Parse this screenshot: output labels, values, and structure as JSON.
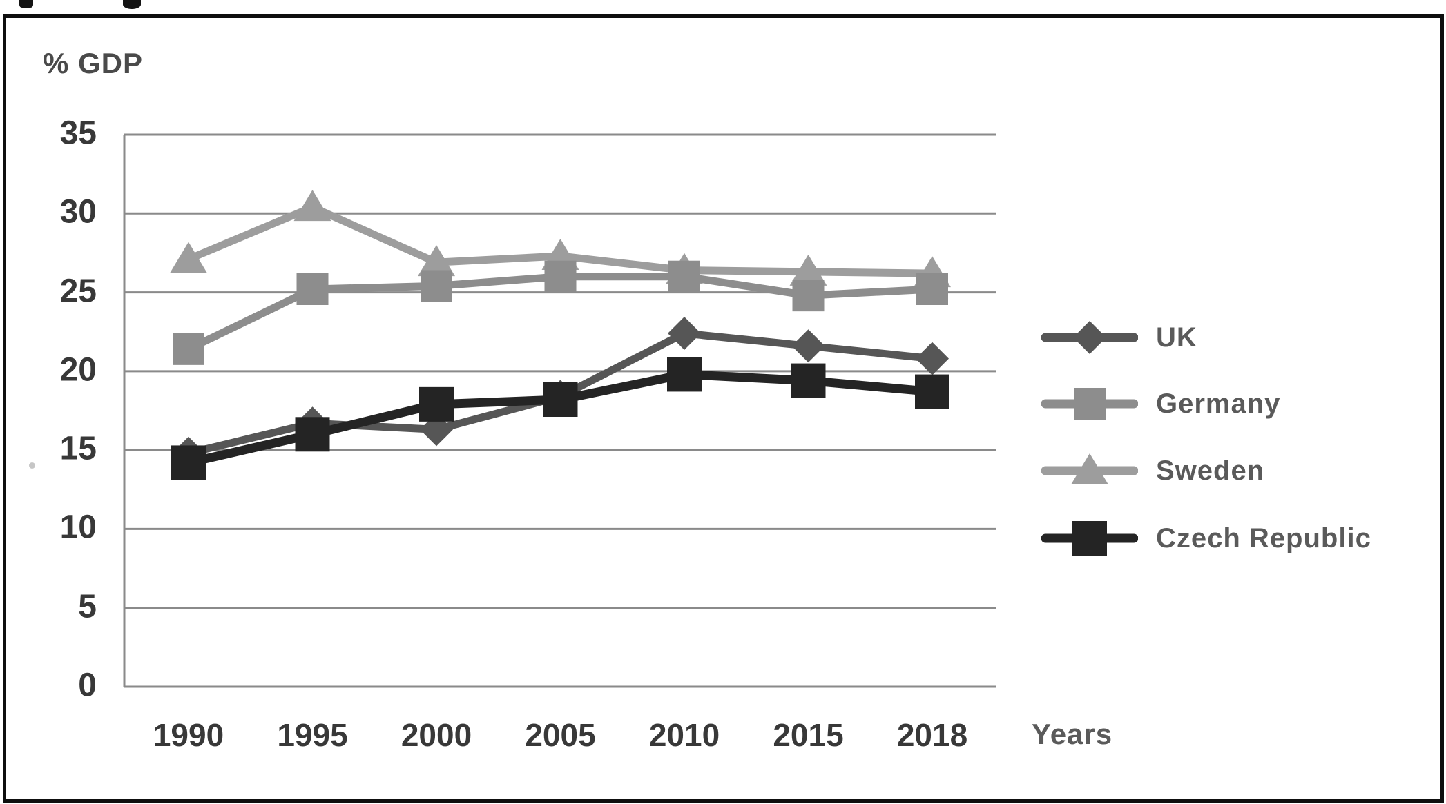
{
  "labels": {
    "y_axis_title": "% GDP",
    "x_axis_title": "Years"
  },
  "chart_data": {
    "type": "line",
    "title": "",
    "categories": [
      "1990",
      "1995",
      "2000",
      "2005",
      "2010",
      "2015",
      "2018"
    ],
    "xlabel": "Years",
    "ylabel": "% GDP",
    "y_axis": {
      "min": 0,
      "max": 35,
      "tick_step": 5,
      "ticks": [
        35,
        30,
        25,
        20,
        15,
        10,
        5,
        0
      ]
    },
    "grid": true,
    "legend_position": "right",
    "series": [
      {
        "name": "UK",
        "marker": "diamond",
        "color": "#565656",
        "values": [
          14.8,
          16.7,
          16.3,
          18.4,
          22.4,
          21.6,
          20.8
        ]
      },
      {
        "name": "Germany",
        "marker": "square",
        "color": "#8d8d8d",
        "values": [
          21.4,
          25.2,
          25.4,
          26.0,
          26.0,
          24.8,
          25.2
        ]
      },
      {
        "name": "Sweden",
        "marker": "triangle",
        "color": "#9d9d9d",
        "values": [
          27.1,
          30.4,
          26.9,
          27.3,
          26.4,
          26.3,
          26.2
        ]
      },
      {
        "name": "Czech Republic",
        "marker": "square",
        "color": "#242424",
        "values": [
          14.2,
          16.0,
          17.9,
          18.2,
          19.8,
          19.4,
          18.7
        ]
      }
    ]
  },
  "colors": {
    "gridline": "#8a8a8a",
    "axis_line": "#8a8a8a",
    "tick_text": "#383838",
    "frame_border": "#0e0e0e"
  }
}
